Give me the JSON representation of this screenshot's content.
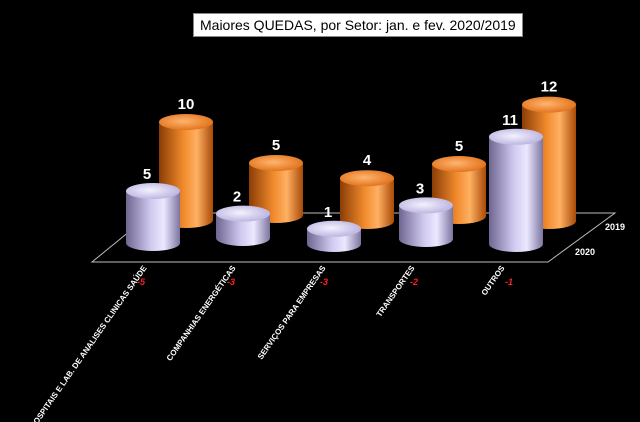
{
  "chart_data": {
    "type": "bar",
    "title": "Maiores QUEDAS, por Setor: jan. e fev. 2020/2019",
    "categories": [
      "HOSPITAIS E LAB. DE ANALISES CLINICAS SAÚDE",
      "COMPANHIAS ENERGÉTICAS",
      "SERVIÇOS PARA EMPRESAS",
      "TRANSPORTES",
      "OUTROS"
    ],
    "series": [
      {
        "name": "2020",
        "values": [
          5,
          2,
          1,
          3,
          11
        ],
        "color": "#c8c0ea"
      },
      {
        "name": "2019",
        "values": [
          10,
          5,
          4,
          5,
          12
        ],
        "color": "#ee7d1f"
      }
    ],
    "differences": [
      "-5",
      "-3",
      "-3",
      "-2",
      "-1"
    ],
    "difference_color": "#ff2020",
    "ylim": [
      0,
      12
    ],
    "grid": false,
    "background": "#000000"
  }
}
